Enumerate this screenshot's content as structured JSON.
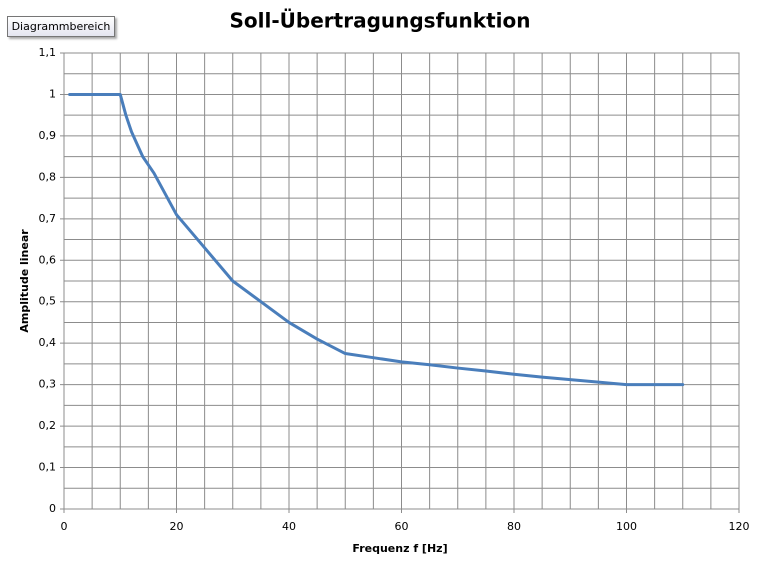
{
  "tooltip": "Diagrammbereich",
  "chart_data": {
    "type": "line",
    "title": "Soll-Übertragungsfunktion",
    "xlabel": "Frequenz f [Hz]",
    "ylabel": "Amplitude linear",
    "x": [
      1,
      5,
      10,
      11,
      12,
      13,
      14,
      15,
      16,
      18,
      20,
      25,
      30,
      35,
      40,
      45,
      50,
      55,
      60,
      65,
      70,
      75,
      80,
      85,
      90,
      95,
      100,
      110
    ],
    "series": [
      {
        "color": "#4a7ebb",
        "values": [
          1,
          1,
          1,
          0.95,
          0.91,
          0.88,
          0.85,
          0.83,
          0.81,
          0.76,
          0.71,
          0.63,
          0.55,
          0.5,
          0.45,
          0.41,
          0.375,
          0.365,
          0.355,
          0.348,
          0.34,
          0.333,
          0.325,
          0.318,
          0.312,
          0.306,
          0.3,
          0.3
        ]
      }
    ],
    "xlim": [
      0,
      120
    ],
    "xticks": [
      0,
      20,
      40,
      60,
      80,
      100,
      120
    ],
    "ylim": [
      0,
      1.1
    ],
    "yticks": [
      0,
      {
        "value": 0.1,
        "label": "0,1"
      },
      {
        "value": 0.2,
        "label": "0,2"
      },
      {
        "value": 0.3,
        "label": "0,3"
      },
      {
        "value": 0.4,
        "label": "0,4"
      },
      {
        "value": 0.5,
        "label": "0,5"
      },
      {
        "value": 0.6,
        "label": "0,6"
      },
      {
        "value": 0.7,
        "label": "0,7"
      },
      {
        "value": 0.8,
        "label": "0,8"
      },
      {
        "value": 0.9,
        "label": "0,9"
      },
      1,
      {
        "value": 1.1,
        "label": "1,1"
      }
    ],
    "x_minor_grid": [
      5,
      10,
      15,
      25,
      30,
      35,
      45,
      50,
      55,
      65,
      70,
      75,
      85,
      90,
      95,
      105,
      110,
      115
    ],
    "y_minor_grid": [
      0.05,
      0.15,
      0.25,
      0.35,
      0.45,
      0.55,
      0.65,
      0.75,
      0.85,
      0.95,
      1.05
    ],
    "grid": true
  }
}
